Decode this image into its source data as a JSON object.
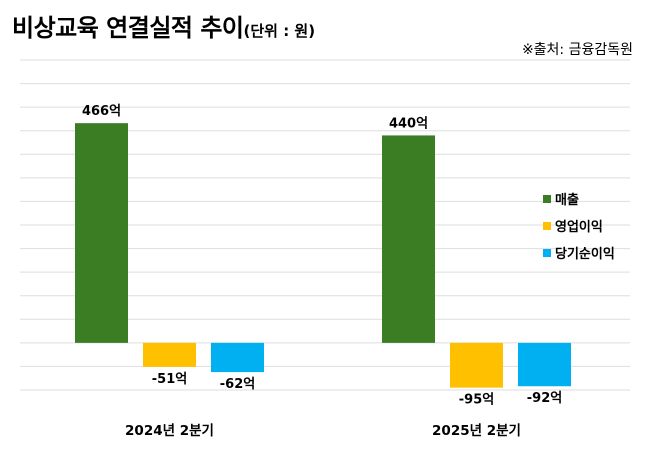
{
  "header": {
    "title": "비상교육 연결실적 추이",
    "unit": "(단위 : 원)",
    "source": "※출처: 금융감독원"
  },
  "colors": {
    "매출": "#3a7d22",
    "영업이익": "#ffc000",
    "당기순이익": "#00b0f0",
    "grid": "#dedede"
  },
  "chart_data": {
    "type": "bar",
    "categories": [
      "2024년 2분기",
      "2025년 2분기"
    ],
    "series": [
      {
        "name": "매출",
        "values": [
          466,
          440
        ],
        "labels": [
          "466억",
          "440억"
        ]
      },
      {
        "name": "영업이익",
        "values": [
          -51,
          -95
        ],
        "labels": [
          "-51억",
          "-95억"
        ]
      },
      {
        "name": "당기순이익",
        "values": [
          -62,
          -92
        ],
        "labels": [
          "-62억",
          "-92억"
        ]
      }
    ],
    "ylim": [
      -100,
      600
    ],
    "grid": true,
    "legend": "right"
  }
}
